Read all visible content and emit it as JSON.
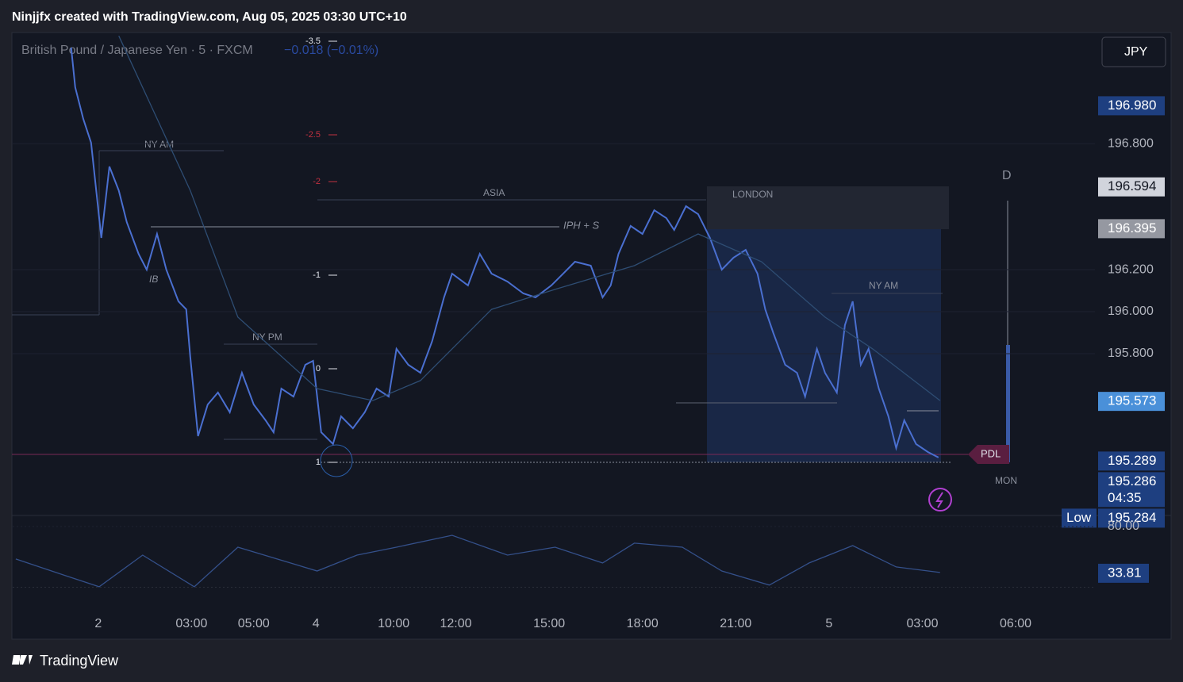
{
  "header": "Ninjjfx created with TradingView.com, Aug 05, 2025 03:30 UTC+10",
  "footer": "TradingView",
  "currency": "JPY",
  "chart_data": [
    {
      "type": "line",
      "title": "British Pound / Japanese Yen · 5 · FXCM",
      "change": "−0.018 (−0.01%)",
      "xlim": [
        -2.75,
        32.05
      ],
      "xticks": [
        {
          "value": 0,
          "label": "2"
        },
        {
          "value": 3,
          "label": "03:00"
        },
        {
          "value": 5,
          "label": "05:00"
        },
        {
          "value": 7,
          "label": "4"
        },
        {
          "value": 9.5,
          "label": "10:00"
        },
        {
          "value": 11.5,
          "label": "12:00"
        },
        {
          "value": 14.5,
          "label": "15:00"
        },
        {
          "value": 17.5,
          "label": "18:00"
        },
        {
          "value": 20.5,
          "label": "21:00"
        },
        {
          "value": 23.5,
          "label": "5"
        },
        {
          "value": 26.5,
          "label": "03:00"
        },
        {
          "value": 29.5,
          "label": "06:00"
        }
      ],
      "ylim": [
        195.03,
        197.325
      ],
      "yticks": [
        {
          "value": 196.8,
          "label": "196.800"
        },
        {
          "value": 196.2,
          "label": "196.200"
        },
        {
          "value": 196.0,
          "label": "196.000"
        },
        {
          "value": 195.8,
          "label": "195.800"
        }
      ],
      "series": [
        {
          "color": "#4a6fd0",
          "x": [
            -0.87,
            -0.74,
            -0.48,
            -0.23,
            0.1,
            0.36,
            0.66,
            0.92,
            1.3,
            1.56,
            1.89,
            2.19,
            2.58,
            2.83,
            2.96,
            3.21,
            3.52,
            3.85,
            4.23,
            4.62,
            5.0,
            5.38,
            5.64,
            5.89,
            6.28,
            6.66,
            6.91,
            7.17,
            7.55,
            7.81,
            8.19,
            8.57,
            8.95,
            9.34,
            9.59,
            9.97,
            10.36,
            10.74,
            11.12,
            11.38,
            11.89,
            12.27,
            12.65,
            13.16,
            13.67,
            14.06,
            14.57,
            14.95,
            15.33,
            15.84,
            16.22,
            16.48,
            16.73,
            17.12,
            17.5,
            17.88,
            18.27,
            18.52,
            18.9,
            19.29,
            19.67,
            20.05,
            20.43,
            20.82,
            21.2,
            21.45,
            21.71,
            22.09,
            22.47,
            22.73,
            23.11,
            23.37,
            23.75,
            24.01,
            24.26,
            24.52,
            24.77,
            25.1,
            25.41,
            25.66,
            25.92,
            26.3,
            26.68,
            27.02
          ],
          "values": [
            197.257,
            197.068,
            196.917,
            196.804,
            196.351,
            196.691,
            196.577,
            196.426,
            196.275,
            196.2,
            196.37,
            196.2,
            196.049,
            196.011,
            195.785,
            195.408,
            195.558,
            195.615,
            195.521,
            195.709,
            195.558,
            195.483,
            195.426,
            195.634,
            195.596,
            195.747,
            195.766,
            195.426,
            195.37,
            195.502,
            195.445,
            195.521,
            195.634,
            195.596,
            195.823,
            195.747,
            195.709,
            195.86,
            196.068,
            196.181,
            196.125,
            196.275,
            196.181,
            196.143,
            196.087,
            196.068,
            196.125,
            196.181,
            196.238,
            196.219,
            196.068,
            196.125,
            196.275,
            196.408,
            196.37,
            196.483,
            196.445,
            196.389,
            196.502,
            196.464,
            196.351,
            196.2,
            196.257,
            196.294,
            196.181,
            196.011,
            195.898,
            195.747,
            195.709,
            195.596,
            195.823,
            195.709,
            195.615,
            195.936,
            196.049,
            195.747,
            195.823,
            195.634,
            195.502,
            195.351,
            195.483,
            195.37,
            195.332,
            195.306
          ]
        },
        {
          "color": "#2e4d73",
          "x": [
            0.66,
            2.96,
            4.49,
            7.04,
            8.83,
            10.36,
            12.65,
            14.69,
            17.24,
            19.29,
            21.33,
            23.37,
            24.9,
            27.07
          ],
          "values": [
            197.313,
            196.577,
            195.974,
            195.634,
            195.577,
            195.672,
            196.011,
            196.106,
            196.219,
            196.37,
            196.238,
            195.974,
            195.823,
            195.577
          ]
        }
      ],
      "price_labels": [
        {
          "value": 196.98,
          "label": "196.980",
          "color": "#1e3f80"
        },
        {
          "value": 196.594,
          "label": "196.594",
          "color": "#d1d4dc"
        },
        {
          "value": 196.395,
          "label": "196.395",
          "color": "#9598a1"
        },
        {
          "value": 195.573,
          "label": "195.573",
          "color": "#4a90d9"
        },
        {
          "value": 195.289,
          "label": "195.289",
          "color": "#1e3f80"
        },
        {
          "value": 195.286,
          "label": "195.286",
          "color": "#1e3f80"
        },
        {
          "value": 195.284,
          "label": "195.284",
          "color": "#1e3f80"
        }
      ],
      "countdown": "04:35",
      "low_label": "Low",
      "annotations": {
        "ny_am_1": "NY AM",
        "ny_pm": "NY PM",
        "asia": "ASIA",
        "london": "LONDON",
        "iph": "IPH + S",
        "ib": "IB",
        "ny_am_2": "NY AM",
        "pdl": "PDL",
        "d": "D",
        "mon": "MON"
      },
      "fib_levels": [
        "-3.5",
        "-2.5",
        "-2",
        "-1",
        "0",
        "1"
      ]
    },
    {
      "type": "line",
      "ylim": [
        0,
        91
      ],
      "yticks": [
        {
          "value": 80,
          "label": "80.00"
        }
      ],
      "series": [
        {
          "color": "#34508a",
          "x": [
            -2.65,
            -1.12,
            0.03,
            1.43,
            3.09,
            4.49,
            7.04,
            8.32,
            9.59,
            11.38,
            13.16,
            14.69,
            16.22,
            17.24,
            18.78,
            20.05,
            21.58,
            22.86,
            24.26,
            25.66,
            27.07
          ],
          "values": [
            47.9,
            32.2,
            20.5,
            51.8,
            20.5,
            59.6,
            36.1,
            51.8,
            59.6,
            71.4,
            51.8,
            59.6,
            44.0,
            63.6,
            59.6,
            36.1,
            22.1,
            44.0,
            61.2,
            40.1,
            34.6
          ]
        }
      ],
      "price_labels": [
        {
          "value": 33.81,
          "label": "33.81",
          "color": "#1e3f80"
        }
      ]
    }
  ]
}
